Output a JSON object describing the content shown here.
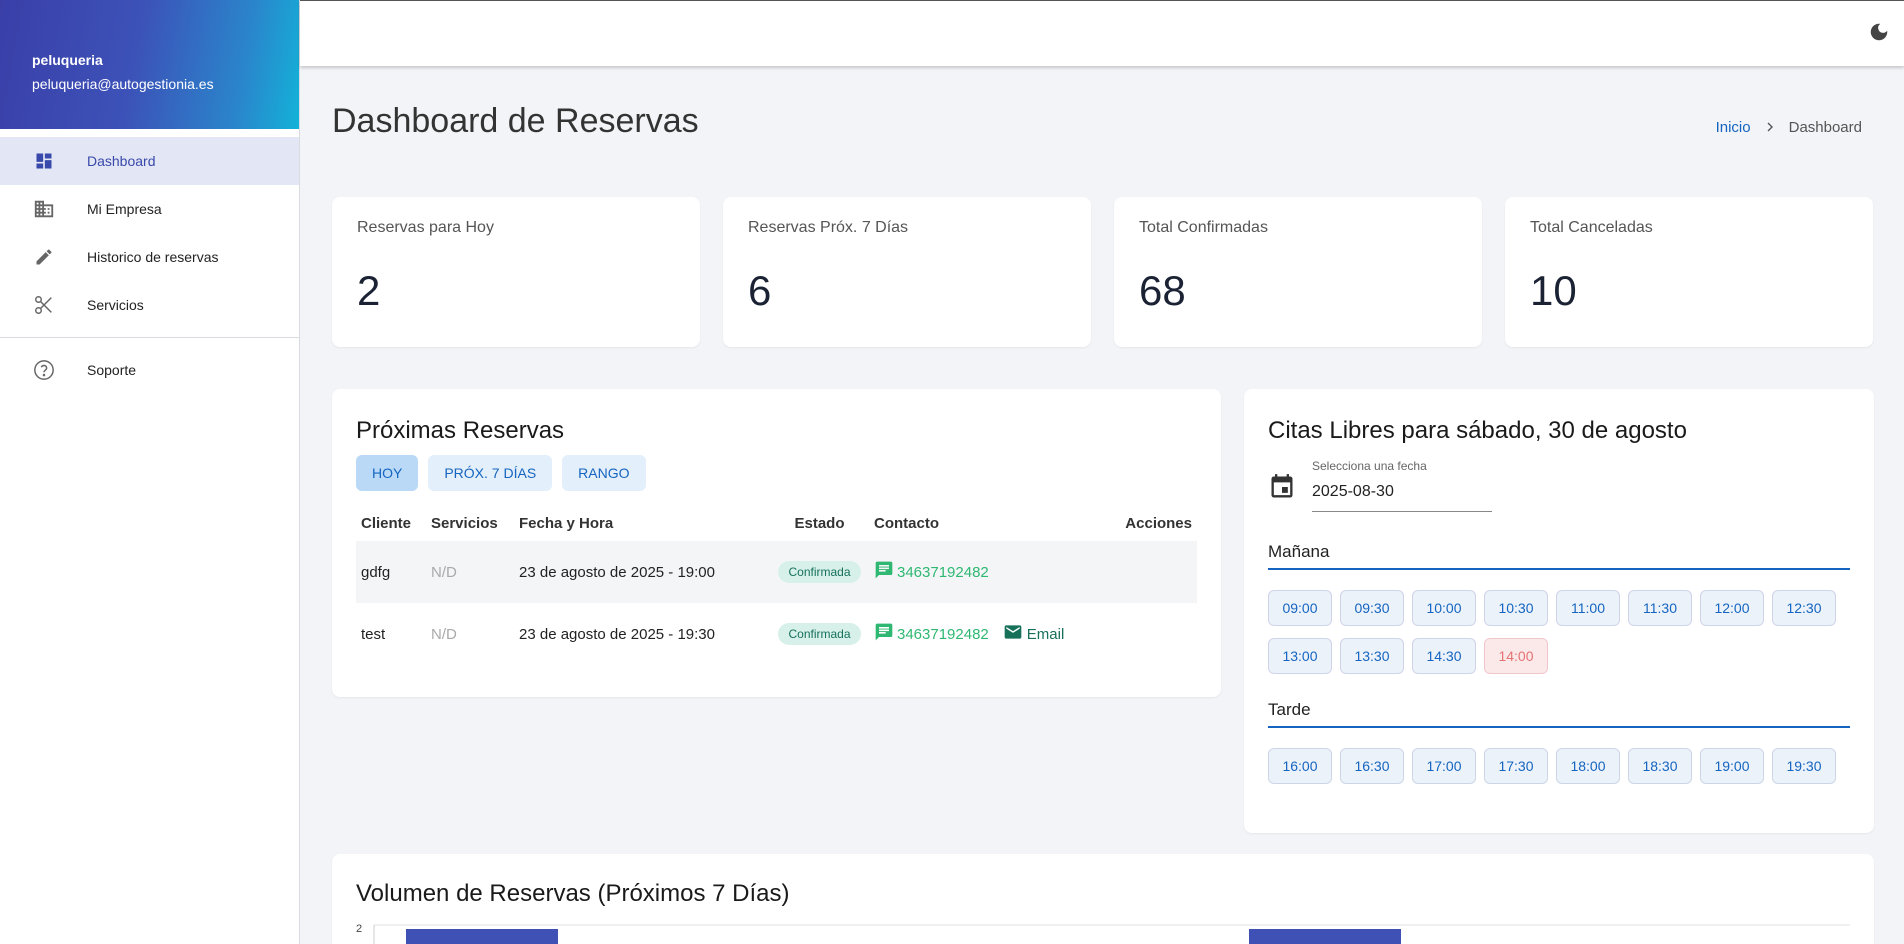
{
  "sidebar": {
    "profile": {
      "name": "peluqueria",
      "email": "peluqueria@autogestionia.es"
    },
    "items": [
      {
        "label": "Dashboard",
        "icon": "dashboard-icon",
        "active": true
      },
      {
        "label": "Mi Empresa",
        "icon": "building-icon"
      },
      {
        "label": "Historico de reservas",
        "icon": "pencil-icon"
      },
      {
        "label": "Servicios",
        "icon": "scissors-icon"
      }
    ],
    "support": {
      "label": "Soporte",
      "icon": "help-circle-icon"
    }
  },
  "topbar": {
    "theme_icon": "moon-icon"
  },
  "page": {
    "title": "Dashboard de Reservas",
    "breadcrumb": {
      "home": "Inicio",
      "current": "Dashboard"
    }
  },
  "stats": [
    {
      "label": "Reservas para Hoy",
      "value": "2"
    },
    {
      "label": "Reservas Próx. 7 Días",
      "value": "6"
    },
    {
      "label": "Total Confirmadas",
      "value": "68"
    },
    {
      "label": "Total Canceladas",
      "value": "10"
    }
  ],
  "reservations": {
    "title": "Próximas Reservas",
    "filters": [
      {
        "label": "HOY",
        "active": true
      },
      {
        "label": "PRÓX. 7 DÍAS"
      },
      {
        "label": "RANGO"
      }
    ],
    "columns": [
      "Cliente",
      "Servicios",
      "Fecha y Hora",
      "Estado",
      "Contacto",
      "Acciones"
    ],
    "rows": [
      {
        "cliente": "gdfg",
        "servicios": "N/D",
        "fecha": "23 de agosto de 2025 - 19:00",
        "estado": "Confirmada",
        "telefono": "34637192482",
        "email": ""
      },
      {
        "cliente": "test",
        "servicios": "N/D",
        "fecha": "23 de agosto de 2025 - 19:30",
        "estado": "Confirmada",
        "telefono": "34637192482",
        "email": "Email"
      }
    ]
  },
  "slots": {
    "title": "Citas Libres para sábado, 30 de agosto",
    "date_label": "Selecciona una fecha",
    "date_value": "2025-08-30",
    "morning_label": "Mañana",
    "morning": [
      {
        "time": "09:00"
      },
      {
        "time": "09:30"
      },
      {
        "time": "10:00"
      },
      {
        "time": "10:30"
      },
      {
        "time": "11:00"
      },
      {
        "time": "11:30"
      },
      {
        "time": "12:00"
      },
      {
        "time": "12:30"
      },
      {
        "time": "13:00"
      },
      {
        "time": "13:30"
      },
      {
        "time": "14:30"
      },
      {
        "time": "14:00",
        "taken": true
      }
    ],
    "afternoon_label": "Tarde",
    "afternoon": [
      {
        "time": "16:00"
      },
      {
        "time": "16:30"
      },
      {
        "time": "17:00"
      },
      {
        "time": "17:30"
      },
      {
        "time": "18:00"
      },
      {
        "time": "18:30"
      },
      {
        "time": "19:00"
      },
      {
        "time": "19:30"
      }
    ]
  },
  "volume": {
    "title": "Volumen de Reservas (Próximos 7 Días)",
    "y_max_label": "2"
  },
  "colors": {
    "accent": "#1565c0",
    "active_nav": "#3949ab",
    "chart_bar": "#3f51b5",
    "confirmed_badge": "#d7f1ea",
    "whatsapp": "#2eb872",
    "taken_slot": "#e57373"
  }
}
